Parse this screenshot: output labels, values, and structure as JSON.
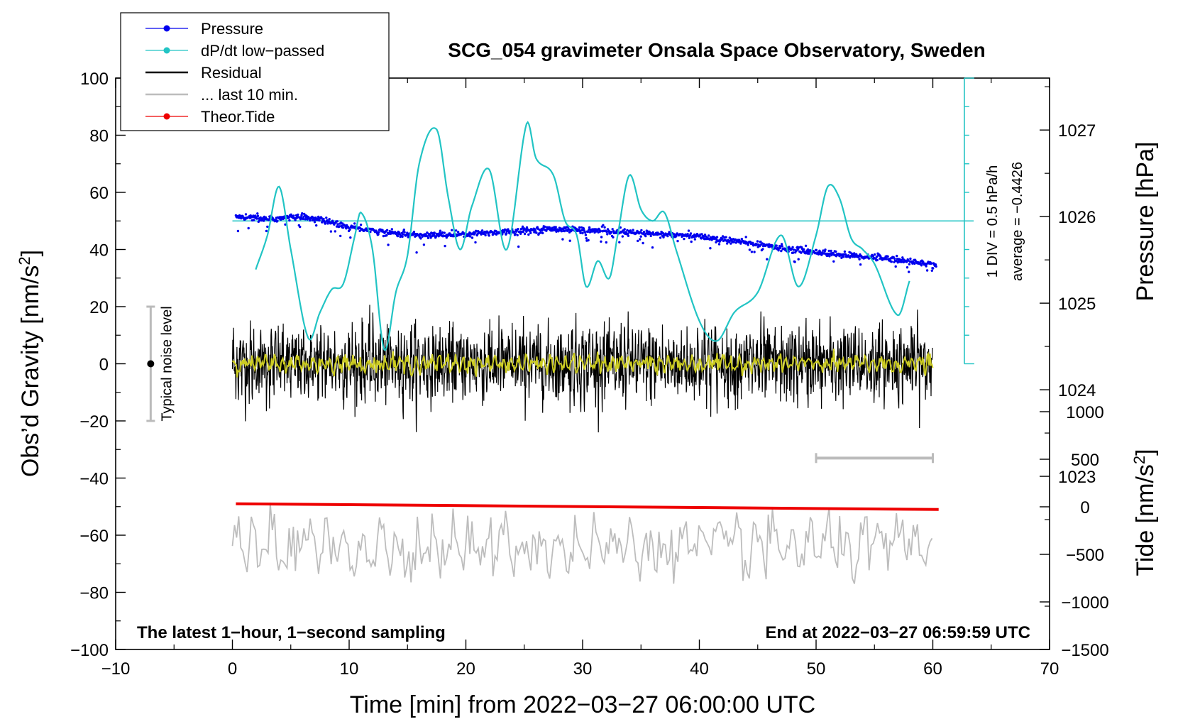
{
  "chart_data": {
    "type": "line",
    "title": "SCG_054 gravimeter Onsala Space Observatory, Sweden",
    "xlabel": "Time [min] from 2022−03−27 06:00:00 UTC",
    "ylabel": "Obs’d Gravity [nm/s",
    "ylabel_sup": "2",
    "ylabel_close": "]",
    "xlim": [
      -10,
      70
    ],
    "ylim": [
      -100,
      100
    ],
    "x_ticks": [
      -10,
      0,
      10,
      20,
      30,
      40,
      50,
      60,
      70
    ],
    "x_tick_labels": [
      "−10",
      "0",
      "10",
      "20",
      "30",
      "40",
      "50",
      "60",
      "70"
    ],
    "y_ticks": [
      -100,
      -80,
      -60,
      -40,
      -20,
      0,
      20,
      40,
      60,
      80,
      100
    ],
    "y_tick_labels": [
      "−100",
      "−80",
      "−60",
      "−40",
      "−20",
      "0",
      "20",
      "40",
      "60",
      "80",
      "100"
    ],
    "pressure_axis": {
      "label": "Pressure [hPa]",
      "ticks": [
        1023,
        1024,
        1025,
        1026,
        1027
      ],
      "tick_labels": [
        "1023",
        "1024",
        "1025",
        "1026",
        "1027"
      ],
      "range_hpa": [
        1021,
        1027.6
      ]
    },
    "tide_axis": {
      "label": "Tide [nm/s",
      "label_sup": "2",
      "label_close": "]",
      "ticks": [
        -1500,
        -1000,
        -500,
        0,
        500,
        1000
      ],
      "tick_labels": [
        "−1500",
        "−1000",
        "−500",
        "0",
        "500",
        "1000"
      ],
      "range": [
        -1500,
        1000
      ]
    },
    "dpdt_scale": {
      "note_div": "1 DIV = 0.5 hPa/h",
      "note_avg": "average = −0.4426",
      "baseline_gravity": 50,
      "scale_x_min": 62.7,
      "scale_top_gravity": 100,
      "scale_bottom_gravity": 0,
      "divisions": 10
    },
    "noise_bar": {
      "label": "Typical noise level",
      "x": -7,
      "center": 0,
      "low": -20,
      "high": 20
    },
    "last_10min_bar": {
      "x_start": 50,
      "x_end": 60,
      "gravity": -33
    },
    "legend": [
      {
        "name": "Pressure",
        "color": "#0000ee",
        "marker": "dot"
      },
      {
        "name": "dP/dt low−passed",
        "color": "#22c4c4",
        "marker": "dot"
      },
      {
        "name": "Residual",
        "color": "#000000",
        "marker": "line"
      },
      {
        "name": "... last 10 min.",
        "color": "#bdbdbd",
        "marker": "line"
      },
      {
        "name": "Theor.Tide",
        "color": "#ee0000",
        "marker": "dot"
      }
    ],
    "note_left": "The latest 1−hour, 1−second sampling",
    "note_right": "End at 2022−03−27 06:59:59 UTC",
    "series": [
      {
        "name": "Pressure",
        "axis": "pressure_hpa",
        "color": "#0000ee",
        "x": [
          0.3,
          3,
          6,
          8,
          10,
          13,
          16,
          20,
          24,
          28,
          32,
          36,
          40,
          44,
          48,
          52,
          56,
          60.3
        ],
        "values": [
          1026.0,
          1025.97,
          1026.0,
          1025.95,
          1025.88,
          1025.82,
          1025.78,
          1025.8,
          1025.83,
          1025.86,
          1025.83,
          1025.8,
          1025.77,
          1025.7,
          1025.62,
          1025.56,
          1025.52,
          1025.44
        ]
      },
      {
        "name": "dP/dt low−passed",
        "axis": "gravity",
        "color": "#22c4c4",
        "x": [
          2,
          3,
          4,
          5,
          6.5,
          7.5,
          8.5,
          9.5,
          10.5,
          11,
          12,
          13,
          14,
          15,
          16,
          17.5,
          18.5,
          19.5,
          20.5,
          22,
          23.5,
          25.2,
          26,
          27.5,
          28.5,
          29.5,
          30.3,
          31.3,
          32.3,
          33,
          34,
          35,
          36,
          37,
          38,
          40,
          41.5,
          43,
          45,
          47,
          48.5,
          50,
          51,
          52,
          53,
          54,
          55,
          57,
          58
        ],
        "values": [
          33,
          45,
          62,
          40,
          9,
          18,
          26,
          28,
          45,
          53,
          40,
          5,
          25,
          38,
          70,
          82,
          58,
          40,
          55,
          68,
          40,
          84,
          72,
          66,
          50,
          45,
          27,
          36,
          30,
          45,
          66,
          54,
          50,
          53,
          40,
          15,
          8,
          18,
          25,
          45,
          27,
          45,
          62,
          58,
          44,
          40,
          35,
          17,
          29
        ]
      },
      {
        "name": "Residual",
        "axis": "gravity",
        "color": "#000000",
        "x": [
          0,
          60
        ],
        "values": [
          0,
          0
        ],
        "amplitude": 11,
        "peak_min": -24,
        "peak_max": 23
      },
      {
        "name": "Residual filtered",
        "axis": "gravity",
        "color": "#cccc22",
        "x": [
          0,
          60
        ],
        "values": [
          0,
          0
        ],
        "amplitude": 2.5
      },
      {
        "name": "... last 10 min.",
        "axis": "gravity",
        "color": "#bdbdbd",
        "x": [
          0,
          60
        ],
        "values": [
          -64,
          -64
        ],
        "amplitude": 10,
        "min": -77,
        "max": -46
      },
      {
        "name": "Theor.Tide",
        "axis": "gravity",
        "color": "#ee0000",
        "x": [
          0.3,
          60.5
        ],
        "values": [
          -49,
          -51
        ]
      }
    ]
  }
}
